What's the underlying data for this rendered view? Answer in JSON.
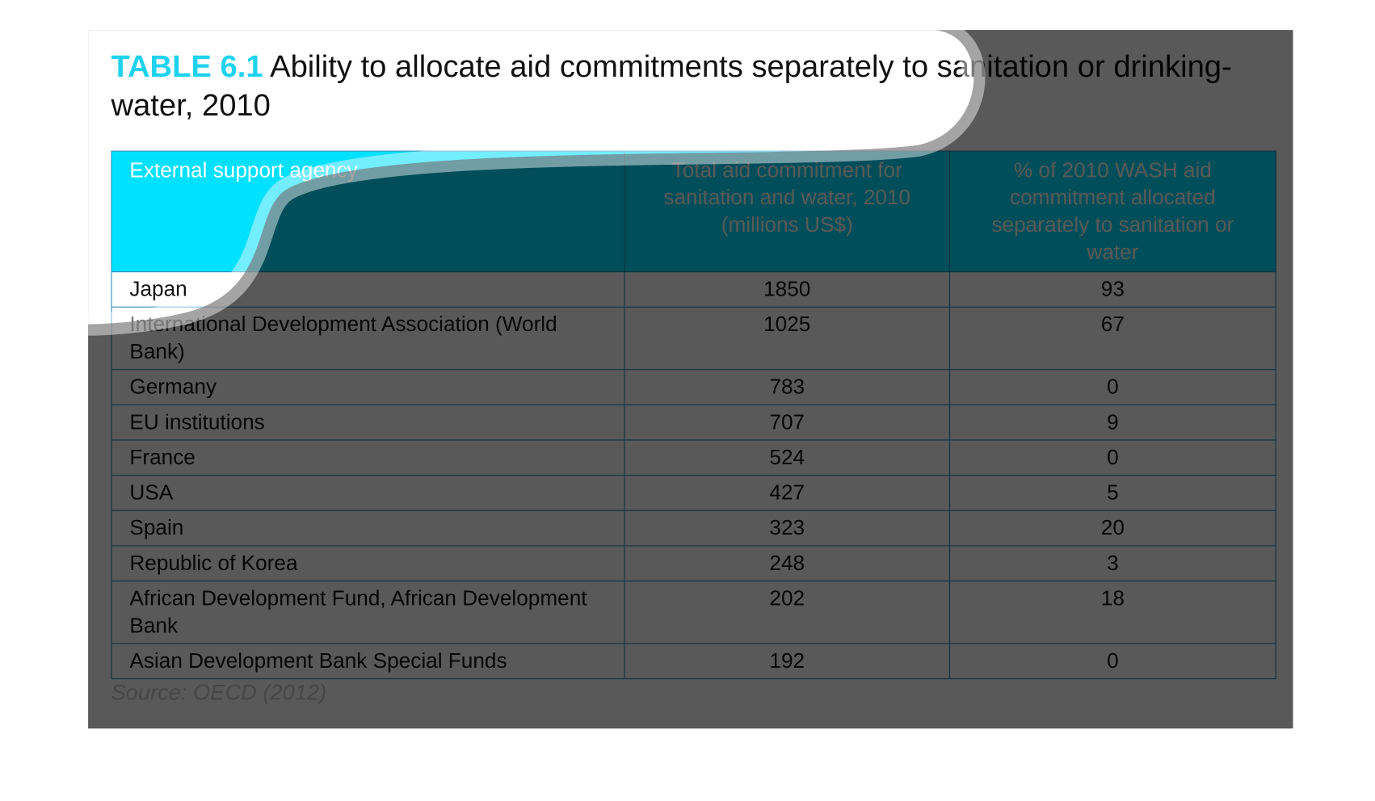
{
  "header": {
    "label": "TABLE 6.1",
    "title": "Ability to allocate aid commitments separately to sanitation or drinking-water, 2010"
  },
  "table": {
    "columns": [
      "External support agency",
      "Total aid commitment for sanitation and water, 2010 (millions US$)",
      "% of 2010 WASH aid commitment allocated separately to sanitation or water"
    ],
    "rows": [
      [
        "Japan",
        1850,
        93
      ],
      [
        "International Development Association (World Bank)",
        1025,
        67
      ],
      [
        "Germany",
        783,
        0
      ],
      [
        "EU institutions",
        707,
        9
      ],
      [
        "France",
        524,
        0
      ],
      [
        "USA",
        427,
        5
      ],
      [
        "Spain",
        323,
        20
      ],
      [
        "Republic of Korea",
        248,
        3
      ],
      [
        "African Development Fund, African Development Bank",
        202,
        18
      ],
      [
        "Asian Development Bank Special Funds",
        192,
        0
      ]
    ]
  },
  "source": "Source: OECD (2012)"
}
